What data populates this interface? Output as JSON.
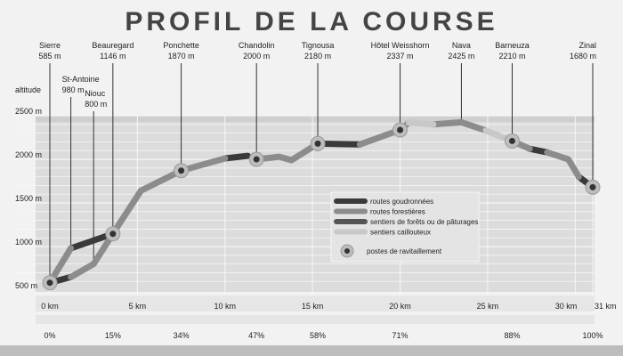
{
  "title": "PROFIL DE LA COURSE",
  "chart_data": {
    "type": "line",
    "title": "PROFIL DE LA COURSE",
    "ylabel": "altitude",
    "xlabel": "",
    "xlim": [
      0,
      31
    ],
    "ylim": [
      500,
      2500
    ],
    "grid": true,
    "y_ticks": [
      {
        "value": 500,
        "label": "500 m"
      },
      {
        "value": 1000,
        "label": "1000 m"
      },
      {
        "value": 1500,
        "label": "1500 m"
      },
      {
        "value": 2000,
        "label": "2000 m"
      },
      {
        "value": 2500,
        "label": "2500 m"
      }
    ],
    "x_ticks": [
      {
        "value": 0,
        "label": "0 km"
      },
      {
        "value": 5,
        "label": "5 km"
      },
      {
        "value": 10,
        "label": "10 km"
      },
      {
        "value": 15,
        "label": "15 km"
      },
      {
        "value": 20,
        "label": "20 km"
      },
      {
        "value": 25,
        "label": "25 km"
      },
      {
        "value": 30,
        "label": "30 km"
      },
      {
        "value": 31,
        "label": "31 km"
      }
    ],
    "percent_ticks": [
      {
        "value": 0,
        "label": "0%"
      },
      {
        "value": 3.6,
        "label": "15%"
      },
      {
        "value": 7.5,
        "label": "34%"
      },
      {
        "value": 11.8,
        "label": "47%"
      },
      {
        "value": 15.3,
        "label": "58%"
      },
      {
        "value": 20,
        "label": "71%"
      },
      {
        "value": 26.4,
        "label": "88%"
      },
      {
        "value": 31,
        "label": "100%"
      }
    ],
    "places": [
      {
        "name": "Sierre",
        "alt_label": "585 m",
        "km": 0,
        "alt": 585,
        "ravitaillement": true
      },
      {
        "name": "St-Antoine",
        "alt_label": "980 m",
        "km": 1.2,
        "alt": 980,
        "ravitaillement": false
      },
      {
        "name": "Niouc",
        "alt_label": "800 m",
        "km": 2.5,
        "alt": 800,
        "ravitaillement": false
      },
      {
        "name": "Beauregard",
        "alt_label": "1146 m",
        "km": 3.6,
        "alt": 1146,
        "ravitaillement": true
      },
      {
        "name": "Ponchette",
        "alt_label": "1870 m",
        "km": 7.5,
        "alt": 1870,
        "ravitaillement": true
      },
      {
        "name": "Chandolin",
        "alt_label": "2000 m",
        "km": 11.8,
        "alt": 2000,
        "ravitaillement": true
      },
      {
        "name": "Tignousa",
        "alt_label": "2180 m",
        "km": 15.3,
        "alt": 2180,
        "ravitaillement": true
      },
      {
        "name": "Hôtel Weisshorn",
        "alt_label": "2337 m",
        "km": 20,
        "alt": 2337,
        "ravitaillement": true
      },
      {
        "name": "Nava",
        "alt_label": "2425 m",
        "km": 23.5,
        "alt": 2425,
        "ravitaillement": false
      },
      {
        "name": "Barneuza",
        "alt_label": "2210 m",
        "km": 26.4,
        "alt": 2210,
        "ravitaillement": true
      },
      {
        "name": "Zinal",
        "alt_label": "1680 m",
        "km": 31,
        "alt": 1680,
        "ravitaillement": true
      }
    ],
    "series": [
      {
        "name": "routes goudronnées",
        "color": "#3a3a3a",
        "segments": [
          [
            [
              0,
              585
            ],
            [
              1.2,
              650
            ]
          ],
          [
            [
              1.2,
              980
            ],
            [
              3.6,
              1146
            ]
          ],
          [
            [
              10,
              2010
            ],
            [
              11.3,
              2040
            ]
          ],
          [
            [
              15.3,
              2180
            ],
            [
              17.7,
              2170
            ]
          ],
          [
            [
              27.4,
              2120
            ],
            [
              28.4,
              2080
            ]
          ],
          [
            [
              30.2,
              1800
            ],
            [
              31,
              1680
            ]
          ]
        ]
      },
      {
        "name": "routes forestières",
        "color": "#8c8c8c",
        "segments": [
          [
            [
              0,
              585
            ],
            [
              1.2,
              980
            ]
          ],
          [
            [
              1.2,
              650
            ],
            [
              2.5,
              800
            ],
            [
              3.6,
              1146
            ]
          ],
          [
            [
              3.6,
              1146
            ],
            [
              5.2,
              1640
            ],
            [
              7.5,
              1870
            ],
            [
              10,
              2010
            ]
          ],
          [
            [
              11.8,
              2000
            ],
            [
              13.1,
              2030
            ],
            [
              13.8,
              1990
            ],
            [
              15.3,
              2180
            ]
          ],
          [
            [
              17.7,
              2170
            ],
            [
              20,
              2337
            ],
            [
              20.5,
              2420
            ]
          ],
          [
            [
              21.9,
              2400
            ],
            [
              23.5,
              2425
            ],
            [
              24.9,
              2330
            ]
          ],
          [
            [
              26.4,
              2210
            ],
            [
              27.4,
              2120
            ]
          ],
          [
            [
              28.4,
              2080
            ],
            [
              29.6,
              2000
            ],
            [
              30.2,
              1800
            ]
          ]
        ]
      },
      {
        "name": "sentiers de forêts ou de pâturages",
        "color": "#555555",
        "segments": []
      },
      {
        "name": "sentiers caillouteux",
        "color": "#c8c8c8",
        "segments": [
          [
            [
              20.5,
              2420
            ],
            [
              21.9,
              2400
            ]
          ],
          [
            [
              24.9,
              2330
            ],
            [
              26.4,
              2210
            ]
          ]
        ]
      }
    ],
    "legend": {
      "placement": "right, inside plot",
      "items": [
        {
          "label": "routes goudronnées",
          "color": "#3a3a3a"
        },
        {
          "label": "routes forestières",
          "color": "#8c8c8c"
        },
        {
          "label": "sentiers de forêts ou de pâturages",
          "color": "#555555"
        },
        {
          "label": "sentiers caillouteux",
          "color": "#c8c8c8"
        },
        {
          "label": "postes de ravitaillement",
          "marker": true
        }
      ]
    }
  }
}
